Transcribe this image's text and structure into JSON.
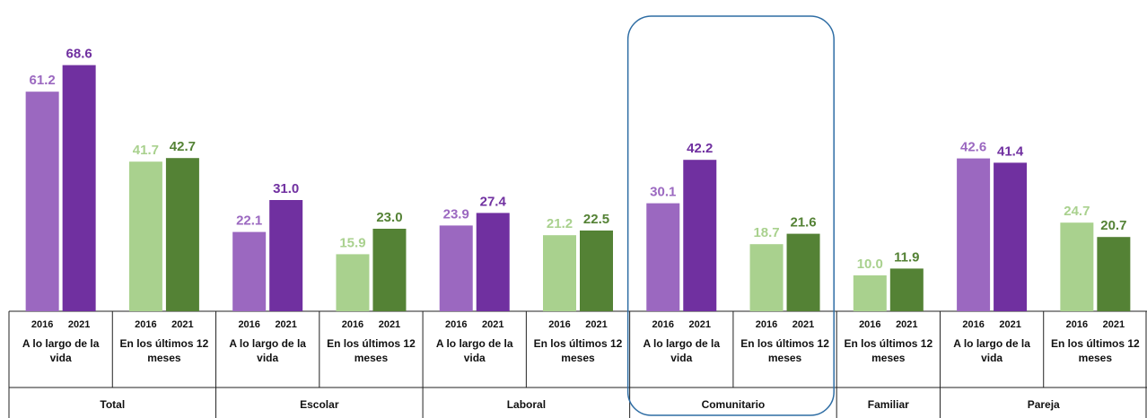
{
  "chart_data": {
    "type": "bar",
    "years": [
      "2016",
      "2021"
    ],
    "highlight": 3,
    "groups": [
      {
        "name": "Total",
        "categories": [
          {
            "label": "A lo largo de la vida",
            "values": [
              61.2,
              68.6
            ],
            "colors": [
              "#9b68c0",
              "#7030a0"
            ]
          },
          {
            "label": "En los últimos 12 meses",
            "values": [
              41.7,
              42.7
            ],
            "colors": [
              "#a9d18e",
              "#548235"
            ]
          }
        ]
      },
      {
        "name": "Escolar",
        "categories": [
          {
            "label": "A lo largo de la vida",
            "values": [
              22.1,
              31.0
            ],
            "value_labels": [
              "22.1",
              "31.0"
            ],
            "colors": [
              "#9b68c0",
              "#7030a0"
            ]
          },
          {
            "label": "En los últimos 12 meses",
            "values": [
              15.9,
              23.0
            ],
            "value_labels": [
              "15.9",
              "23.0"
            ],
            "colors": [
              "#a9d18e",
              "#548235"
            ]
          }
        ]
      },
      {
        "name": "Laboral",
        "categories": [
          {
            "label": "A lo largo de la vida",
            "values": [
              23.9,
              27.4
            ],
            "colors": [
              "#9b68c0",
              "#7030a0"
            ]
          },
          {
            "label": "En los últimos 12 meses",
            "values": [
              21.2,
              22.5
            ],
            "colors": [
              "#a9d18e",
              "#548235"
            ]
          }
        ]
      },
      {
        "name": "Comunitario",
        "categories": [
          {
            "label": "A lo largo de la vida",
            "values": [
              30.1,
              42.2
            ],
            "colors": [
              "#9b68c0",
              "#7030a0"
            ]
          },
          {
            "label": "En los últimos 12 meses",
            "values": [
              18.7,
              21.6
            ],
            "colors": [
              "#a9d18e",
              "#548235"
            ]
          }
        ]
      },
      {
        "name": "Familiar",
        "categories": [
          {
            "label": "En los últimos 12 meses",
            "values": [
              10.0,
              11.9
            ],
            "value_labels": [
              "10.0",
              "11.9"
            ],
            "colors": [
              "#a9d18e",
              "#548235"
            ]
          }
        ]
      },
      {
        "name": "Pareja",
        "categories": [
          {
            "label": "A lo largo de la vida",
            "values": [
              42.6,
              41.4
            ],
            "colors": [
              "#9b68c0",
              "#7030a0"
            ]
          },
          {
            "label": "En los últimos 12 meses",
            "values": [
              24.7,
              20.7
            ],
            "colors": [
              "#a9d18e",
              "#548235"
            ]
          }
        ]
      }
    ]
  }
}
